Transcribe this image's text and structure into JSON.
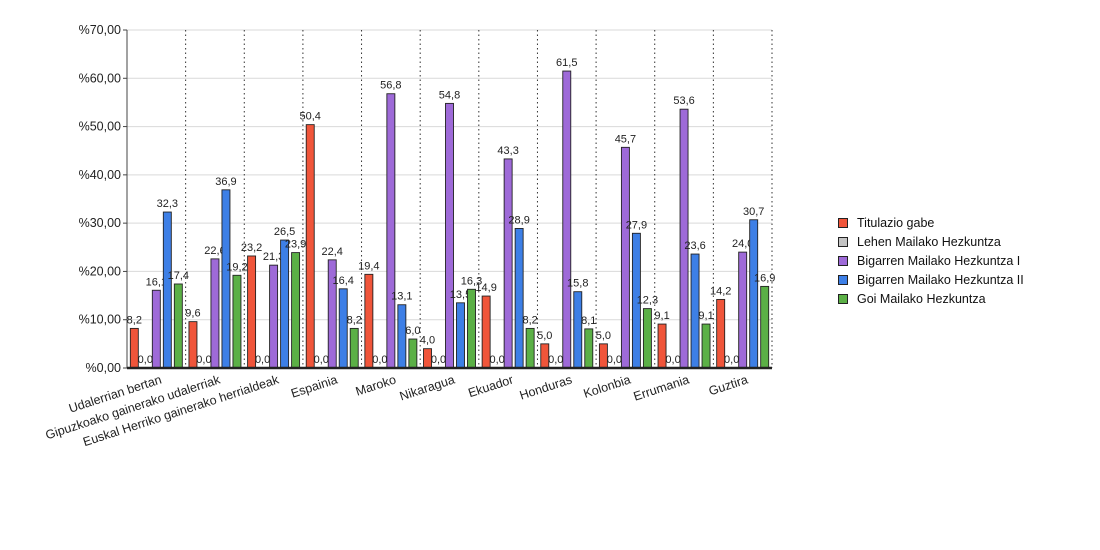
{
  "chart_data": {
    "type": "bar",
    "categories": [
      "Udalerrian bertan",
      "Gipuzkoako gainerako udalerriak",
      "Euskal Herriko gainerako herrialdeak",
      "Espainia",
      "Maroko",
      "Nikaragua",
      "Ekuador",
      "Honduras",
      "Kolonbia",
      "Errumania",
      "Guztira"
    ],
    "series": [
      {
        "name": "Titulazio gabe",
        "color": "#f0553a",
        "values": [
          8.2,
          9.6,
          23.2,
          50.4,
          19.4,
          4.0,
          14.9,
          5.0,
          5.0,
          9.1,
          14.2
        ]
      },
      {
        "name": "Lehen Mailako Hezkuntza",
        "color": "#c4c4c4",
        "values": [
          0.0,
          0.0,
          0.0,
          0.0,
          0.0,
          0.0,
          0.0,
          0.0,
          0.0,
          0.0,
          0.0
        ]
      },
      {
        "name": "Bigarren Mailako Hezkuntza I",
        "color": "#9e6ad8",
        "values": [
          16.1,
          22.6,
          21.3,
          22.4,
          56.8,
          54.8,
          43.3,
          61.5,
          45.7,
          53.6,
          24.0
        ]
      },
      {
        "name": "Bigarren Mailako Hezkuntza II",
        "color": "#3d7fe6",
        "values": [
          32.3,
          36.9,
          26.5,
          16.4,
          13.1,
          13.5,
          28.9,
          15.8,
          27.9,
          23.6,
          30.7
        ]
      },
      {
        "name": "Goi Mailako Hezkuntza",
        "color": "#5bb046",
        "values": [
          17.4,
          19.2,
          23.9,
          8.2,
          6.0,
          16.3,
          8.2,
          8.1,
          12.3,
          9.1,
          16.9
        ]
      }
    ],
    "ylim": [
      0,
      70
    ],
    "yticks": [
      "%0,00",
      "%10,00",
      "%20,00",
      "%30,00",
      "%40,00",
      "%50,00",
      "%60,00",
      "%70,00"
    ],
    "grid": "vertical dotted separators between categories",
    "legend": "right"
  }
}
